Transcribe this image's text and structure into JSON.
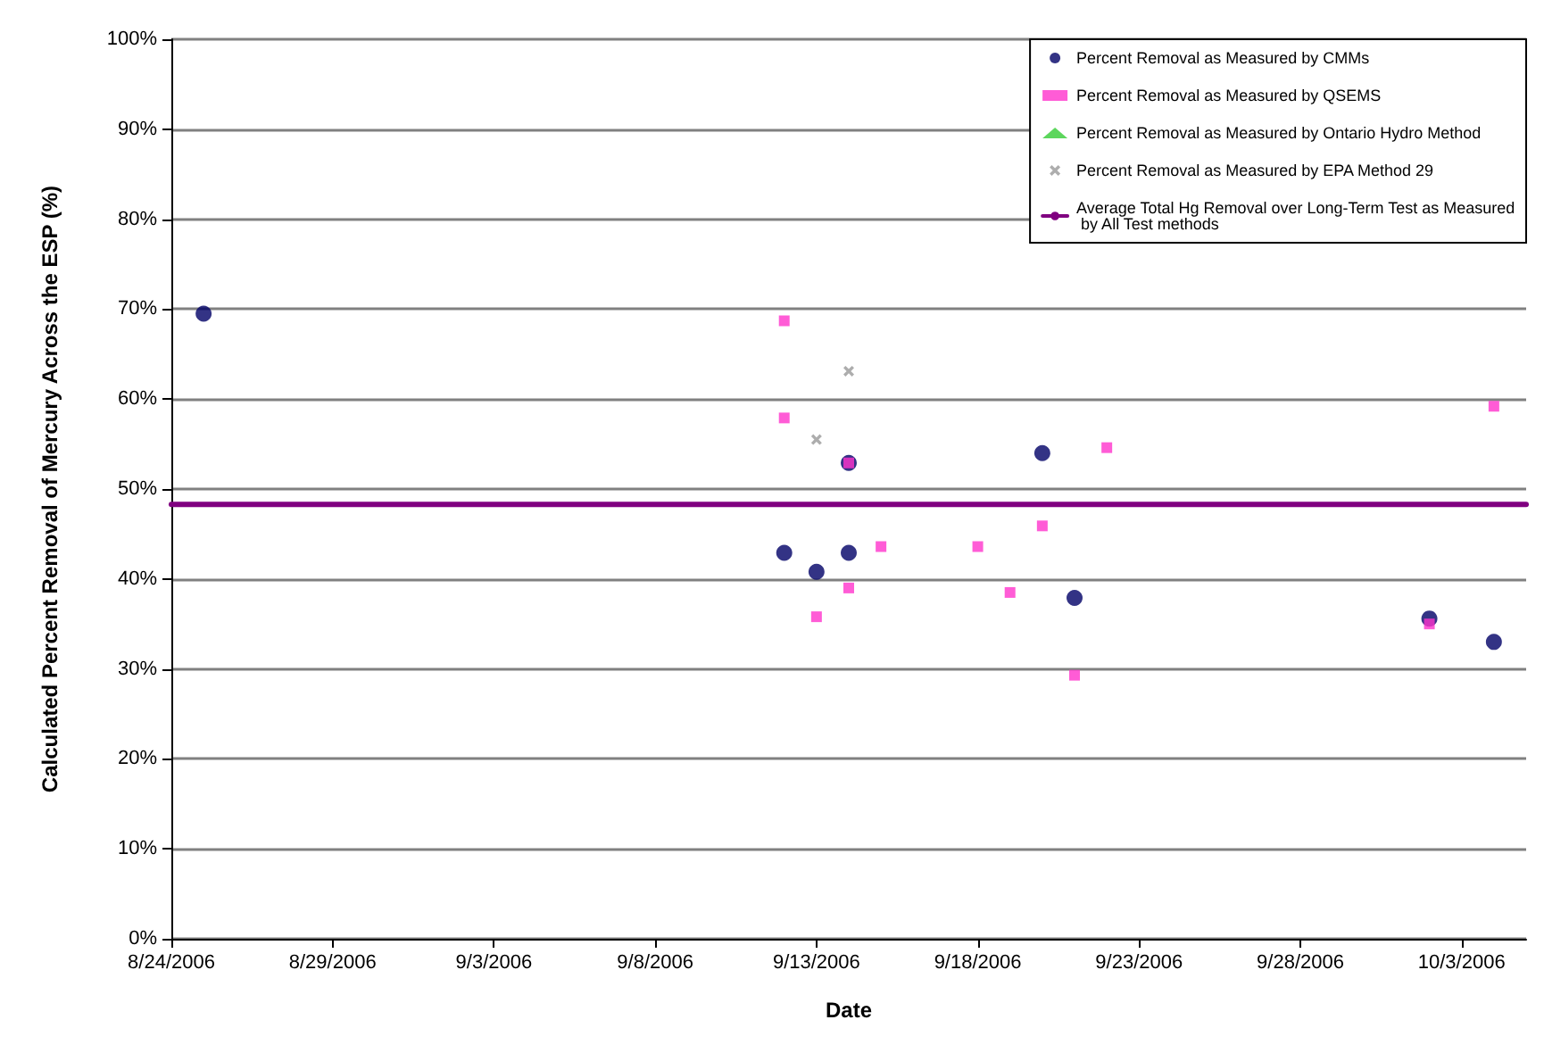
{
  "chart_data": {
    "type": "scatter",
    "xlabel": "Date",
    "ylabel": "Calculated Percent Removal of Mercury Across the ESP (%)",
    "xlim": [
      "2006-08-24",
      "2006-10-05"
    ],
    "xticks": [
      {
        "value": "2006-08-24",
        "label": "8/24/2006"
      },
      {
        "value": "2006-08-29",
        "label": "8/29/2006"
      },
      {
        "value": "2006-09-03",
        "label": "9/3/2006"
      },
      {
        "value": "2006-09-08",
        "label": "9/8/2006"
      },
      {
        "value": "2006-09-13",
        "label": "9/13/2006"
      },
      {
        "value": "2006-09-18",
        "label": "9/18/2006"
      },
      {
        "value": "2006-09-23",
        "label": "9/23/2006"
      },
      {
        "value": "2006-09-28",
        "label": "9/28/2006"
      },
      {
        "value": "2006-10-03",
        "label": "10/3/2006"
      }
    ],
    "ylim": [
      0,
      100
    ],
    "yticks": [
      {
        "value": 0,
        "label": "0%"
      },
      {
        "value": 10,
        "label": "10%"
      },
      {
        "value": 20,
        "label": "20%"
      },
      {
        "value": 30,
        "label": "30%"
      },
      {
        "value": 40,
        "label": "40%"
      },
      {
        "value": 50,
        "label": "50%"
      },
      {
        "value": 60,
        "label": "60%"
      },
      {
        "value": 70,
        "label": "70%"
      },
      {
        "value": 80,
        "label": "80%"
      },
      {
        "value": 90,
        "label": "90%"
      },
      {
        "value": 100,
        "label": "100%"
      }
    ],
    "grid": "y",
    "legend": "top right",
    "series": [
      {
        "name": "Percent Removal as Measured by CMMs",
        "color": "#000066",
        "marker": "circle",
        "x": [
          "2006-08-25",
          "2006-09-12",
          "2006-09-13",
          "2006-09-14",
          "2006-09-14",
          "2006-09-20",
          "2006-09-21",
          "2006-10-02",
          "2006-10-04"
        ],
        "values": [
          69.5,
          42.9,
          40.8,
          42.9,
          52.9,
          54.0,
          37.9,
          35.6,
          33.0
        ]
      },
      {
        "name": "Percent Removal as Measured by QSEMS",
        "color": "#ff33cc",
        "marker": "square",
        "x": [
          "2006-09-12",
          "2006-09-12",
          "2006-09-13",
          "2006-09-14",
          "2006-09-14",
          "2006-09-15",
          "2006-09-18",
          "2006-09-19",
          "2006-09-20",
          "2006-09-21",
          "2006-09-22",
          "2006-10-02",
          "2006-10-04"
        ],
        "values": [
          68.7,
          57.9,
          35.8,
          52.9,
          39.0,
          43.6,
          43.6,
          38.5,
          45.9,
          29.3,
          54.6,
          35.0,
          59.2
        ]
      },
      {
        "name": "Percent Removal as Measured by Ontario Hydro Method",
        "color": "#33cc33",
        "marker": "triangle"
      },
      {
        "name": "Percent Removal as Measured by EPA Method 29",
        "color": "#999999",
        "marker": "cross",
        "x": [
          "2006-09-13",
          "2006-09-14"
        ],
        "values": [
          55.5,
          63.1
        ]
      },
      {
        "name": "Average Total Hg Removal over Long-Term Test as Measured by All Test methods",
        "type": "line",
        "color": "#800080",
        "marker": "none",
        "line_style": "solid",
        "x": [
          "2006-08-24",
          "2006-10-05"
        ],
        "values": [
          48.3,
          48.3
        ]
      }
    ]
  }
}
